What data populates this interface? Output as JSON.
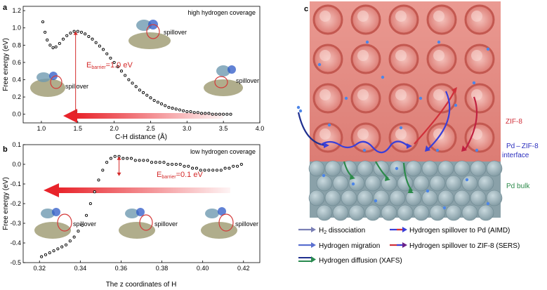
{
  "chart_data": [
    {
      "panel_label": "a",
      "type": "scatter",
      "annotation_top": "high hydrogen coverage",
      "xlabel": "C-H distance (Å)",
      "ylabel": "Free energy (eV)",
      "xlim": [
        0.75,
        4.0
      ],
      "ylim": [
        -0.1,
        1.25
      ],
      "xticks": [
        "1.0",
        "1.5",
        "2.0",
        "2.5",
        "3.0",
        "3.5",
        "4.0"
      ],
      "yticks": [
        "0.0",
        "0.2",
        "0.4",
        "0.6",
        "0.8",
        "1.0",
        "1.2"
      ],
      "barrier_label_main": "E",
      "barrier_label_sub": "barrier",
      "barrier_label_value": "=1.0 eV",
      "inset_labels": [
        "spillover",
        "spillover",
        "spillover"
      ],
      "series": [
        {
          "x": [
            1.02,
            1.05,
            1.08,
            1.12,
            1.16,
            1.2,
            1.25,
            1.3,
            1.35,
            1.4,
            1.45,
            1.5,
            1.55,
            1.6,
            1.65,
            1.7,
            1.75,
            1.8,
            1.85,
            1.9,
            1.95,
            2.0,
            2.05,
            2.1,
            2.15,
            2.2,
            2.25,
            2.3,
            2.35,
            2.4,
            2.45,
            2.5,
            2.55,
            2.6,
            2.65,
            2.7,
            2.75,
            2.8,
            2.85,
            2.9,
            2.95,
            3.0,
            3.05,
            3.1,
            3.15,
            3.2,
            3.25,
            3.3,
            3.35,
            3.4,
            3.45,
            3.5,
            3.55,
            3.6
          ],
          "y": [
            1.07,
            0.95,
            0.86,
            0.8,
            0.77,
            0.78,
            0.82,
            0.87,
            0.91,
            0.94,
            0.96,
            0.96,
            0.95,
            0.93,
            0.9,
            0.87,
            0.83,
            0.79,
            0.75,
            0.7,
            0.65,
            0.6,
            0.55,
            0.5,
            0.45,
            0.4,
            0.36,
            0.32,
            0.28,
            0.25,
            0.22,
            0.19,
            0.16,
            0.14,
            0.12,
            0.1,
            0.08,
            0.07,
            0.06,
            0.05,
            0.04,
            0.03,
            0.03,
            0.02,
            0.02,
            0.01,
            0.01,
            0.01,
            0.0,
            0.0,
            0.0,
            0.0,
            0.0,
            0.0
          ]
        }
      ]
    },
    {
      "panel_label": "b",
      "type": "scatter",
      "annotation_top": "low hydrogen coverage",
      "xlabel": "The z coordinates of H",
      "ylabel": "Free energy (eV)",
      "xlim": [
        0.312,
        0.428
      ],
      "ylim": [
        -0.5,
        0.1
      ],
      "xticks": [
        "0.32",
        "0.34",
        "0.36",
        "0.38",
        "0.40",
        "0.42"
      ],
      "yticks": [
        "0.1",
        "0.0",
        "-0.1",
        "-0.2",
        "-0.3",
        "-0.4",
        "-0.5"
      ],
      "barrier_label_main": "E",
      "barrier_label_sub": "barrier",
      "barrier_label_value": "=0.1 eV",
      "inset_labels": [
        "spillover",
        "spillover",
        "spillover"
      ],
      "series": [
        {
          "x": [
            0.321,
            0.323,
            0.325,
            0.327,
            0.329,
            0.331,
            0.333,
            0.335,
            0.337,
            0.339,
            0.341,
            0.343,
            0.345,
            0.347,
            0.349,
            0.351,
            0.353,
            0.355,
            0.357,
            0.359,
            0.361,
            0.363,
            0.365,
            0.367,
            0.369,
            0.371,
            0.373,
            0.375,
            0.377,
            0.379,
            0.381,
            0.383,
            0.385,
            0.387,
            0.389,
            0.391,
            0.393,
            0.395,
            0.397,
            0.399,
            0.401,
            0.403,
            0.405,
            0.407,
            0.409,
            0.411,
            0.413,
            0.415,
            0.417,
            0.419
          ],
          "y": [
            -0.47,
            -0.46,
            -0.45,
            -0.44,
            -0.43,
            -0.42,
            -0.41,
            -0.39,
            -0.37,
            -0.34,
            -0.31,
            -0.26,
            -0.2,
            -0.14,
            -0.08,
            -0.03,
            0.01,
            0.03,
            0.04,
            0.04,
            0.03,
            0.03,
            0.03,
            0.02,
            0.02,
            0.02,
            0.02,
            0.01,
            0.01,
            0.01,
            0.01,
            0.0,
            0.0,
            0.0,
            0.0,
            -0.01,
            -0.01,
            -0.02,
            -0.02,
            -0.03,
            -0.03,
            -0.03,
            -0.03,
            -0.03,
            -0.03,
            -0.02,
            -0.02,
            -0.01,
            -0.01,
            0.0
          ]
        }
      ]
    }
  ],
  "panel_c": {
    "panel_label": "c",
    "region_labels": {
      "zif8": "ZIF-8",
      "interface_line1": "Pd – ZIF-8",
      "interface_line2": "interface",
      "pd_bulk": "Pd bulk"
    },
    "legend": [
      {
        "pre": "H",
        "sub": "2",
        "post": " dissociation",
        "colors": [
          "#7a7fb5",
          "#7a7fb5"
        ]
      },
      {
        "pre": "Hydrogen migration",
        "sub": "",
        "post": "",
        "colors": [
          "#5a6fd0",
          "#5a6fd0"
        ]
      },
      {
        "pre": "Hydrogen diffusion (XAFS)",
        "sub": "",
        "post": "",
        "colors": [
          "#1f2f8f",
          "#2a8a50"
        ]
      },
      {
        "pre": "Hydrogen spillover to Pd (AIMD)",
        "sub": "",
        "post": "",
        "colors": [
          "#3a3fd8",
          "#e0302f"
        ]
      },
      {
        "pre": "Hydrogen spillover to ZIF-8 (SERS)",
        "sub": "",
        "post": "",
        "colors": [
          "#d0303a",
          "#3a3fd8"
        ]
      }
    ],
    "colors": {
      "zif": "#e4867f",
      "pd": "#9fb5bd",
      "hydrogen": "#4d86e8",
      "red": "#e0302f",
      "blue": "#2b2fbe",
      "green": "#2c8a4a"
    }
  }
}
